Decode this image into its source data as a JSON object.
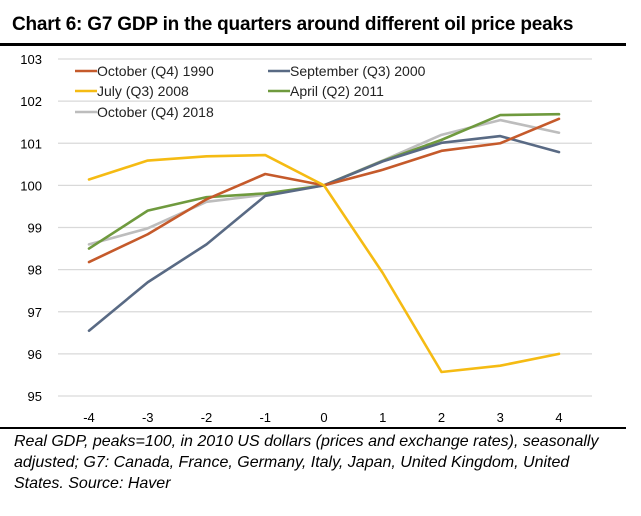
{
  "chart_data": {
    "type": "line",
    "title": "Chart 6: G7 GDP in the quarters around different oil price peaks",
    "xlabel": "",
    "ylabel": "",
    "x": [
      -4,
      -3,
      -2,
      -1,
      0,
      1,
      2,
      3,
      4
    ],
    "x_tick_labels": [
      "-4",
      "-3",
      "-2",
      "-1",
      "0",
      "1",
      "2",
      "3",
      "4"
    ],
    "ylim": [
      95,
      103
    ],
    "y_ticks": [
      95,
      96,
      97,
      98,
      99,
      100,
      101,
      102,
      103
    ],
    "y_tick_labels": [
      "95",
      "96",
      "97",
      "98",
      "99",
      "100",
      "101",
      "102",
      "103"
    ],
    "grid": true,
    "legend_position": "top-left",
    "series": [
      {
        "name": "October (Q4) 1990",
        "color": "#c55a2b",
        "values": [
          98.18,
          98.84,
          99.67,
          100.27,
          100.0,
          100.37,
          100.82,
          101.0,
          101.58
        ]
      },
      {
        "name": "September (Q3) 2000",
        "color": "#596a84",
        "values": [
          96.55,
          97.7,
          98.6,
          99.75,
          100.0,
          100.57,
          101.01,
          101.17,
          100.79
        ]
      },
      {
        "name": "July (Q3) 2008",
        "color": "#f5bb13",
        "values": [
          100.14,
          100.59,
          100.69,
          100.72,
          100.0,
          97.92,
          95.57,
          95.72,
          96.0
        ]
      },
      {
        "name": "April (Q2) 2011",
        "color": "#6f9a3e",
        "values": [
          98.5,
          99.4,
          99.72,
          99.81,
          100.0,
          100.58,
          101.08,
          101.67,
          101.69
        ]
      },
      {
        "name": "October (Q4) 2018",
        "color": "#bdbdbd",
        "values": [
          98.6,
          98.98,
          99.61,
          99.78,
          100.0,
          100.59,
          101.2,
          101.55,
          101.25
        ]
      }
    ]
  },
  "footnote": "Real GDP, peaks=100, in 2010 US dollars (prices and exchange rates), seasonally adjusted; G7: Canada, France, Germany, Italy, Japan, United Kingdom, United States. Source: Haver"
}
